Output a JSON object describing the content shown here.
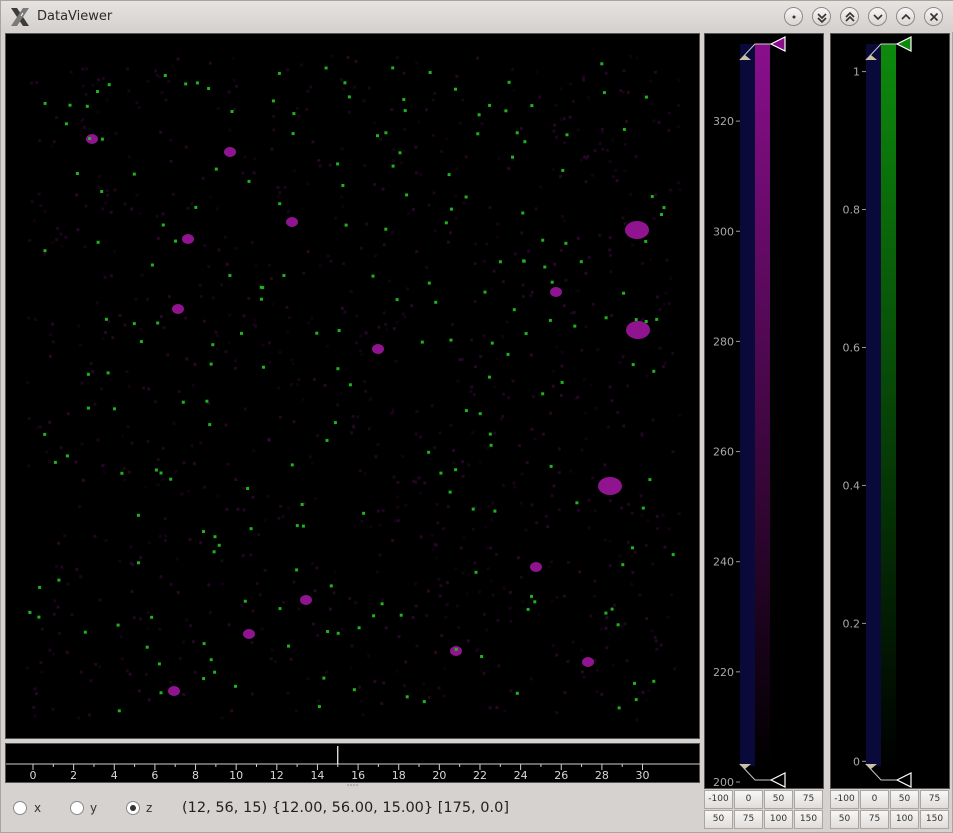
{
  "window": {
    "title": "DataViewer",
    "app_icon": "x-logo-icon"
  },
  "titlebar_buttons": [
    {
      "name": "shade-button",
      "icon": "dot-icon"
    },
    {
      "name": "minimize-all-button",
      "icon": "double-chevron-down-icon"
    },
    {
      "name": "maximize-all-button",
      "icon": "double-chevron-up-icon"
    },
    {
      "name": "minimize-button",
      "icon": "chevron-down-icon"
    },
    {
      "name": "maximize-button",
      "icon": "chevron-up-icon"
    },
    {
      "name": "close-button",
      "icon": "close-icon"
    }
  ],
  "slice_slider": {
    "ticks": [
      "0",
      "2",
      "4",
      "6",
      "8",
      "10",
      "12",
      "14",
      "16",
      "18",
      "20",
      "22",
      "24",
      "26",
      "28",
      "30"
    ],
    "value": 15,
    "min": 0,
    "max": 31.5
  },
  "view_axis": {
    "options": [
      {
        "label": "x",
        "checked": false
      },
      {
        "label": "y",
        "checked": false
      },
      {
        "label": "z",
        "checked": true
      }
    ]
  },
  "coord_readout": "(12, 56, 15) {12.00, 56.00, 15.00} [175, 0.0]",
  "colorbars": [
    {
      "name": "magenta-channel",
      "color": "#8a0e8c",
      "ticks": [
        "320",
        "300",
        "280",
        "260",
        "240",
        "220",
        "200"
      ],
      "tick_values": [
        320,
        300,
        280,
        260,
        240,
        220,
        200
      ],
      "range": [
        200,
        334
      ],
      "presets_row1": [
        "-100",
        "0",
        "50",
        "75"
      ],
      "presets_row2": [
        "50",
        "75",
        "100",
        "150"
      ]
    },
    {
      "name": "green-channel",
      "color": "#0d8a0d",
      "ticks": [
        "1",
        "0.8",
        "0.6",
        "0.4",
        "0.2",
        "0"
      ],
      "tick_values": [
        1,
        0.8,
        0.6,
        0.4,
        0.2,
        0
      ],
      "range": [
        -0.03,
        1.04
      ],
      "presets_row1": [
        "-100",
        "0",
        "50",
        "75"
      ],
      "presets_row2": [
        "50",
        "75",
        "100",
        "150"
      ]
    }
  ],
  "colors": {
    "magenta": "#a020a8",
    "green": "#1fae1f",
    "bar_background": "#0a0a3a"
  }
}
